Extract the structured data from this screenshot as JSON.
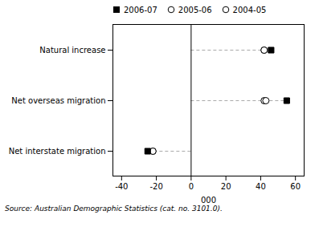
{
  "chart_data": {
    "type": "dot",
    "categories": [
      "Natural increase",
      "Net overseas migration",
      "Net interstate migration"
    ],
    "series": [
      {
        "name": "2006-07",
        "values": [
          46,
          55,
          -25
        ],
        "marker": "square",
        "color": "#000000"
      },
      {
        "name": "2005-06",
        "values": [
          42,
          43,
          -22
        ],
        "marker": "circle-open",
        "color": "#000000"
      },
      {
        "name": "2004-05",
        "values": [
          42,
          42,
          -22
        ],
        "marker": "circle-open",
        "color": "#000000"
      }
    ],
    "xlabel": "000",
    "xlim": [
      -45,
      65
    ],
    "xticks": [
      -40,
      -20,
      0,
      20,
      40,
      60
    ],
    "legend": "upper left",
    "grid": false,
    "caption": "Source: Australian Demographic Statistics (cat. no. 3101.0)."
  }
}
